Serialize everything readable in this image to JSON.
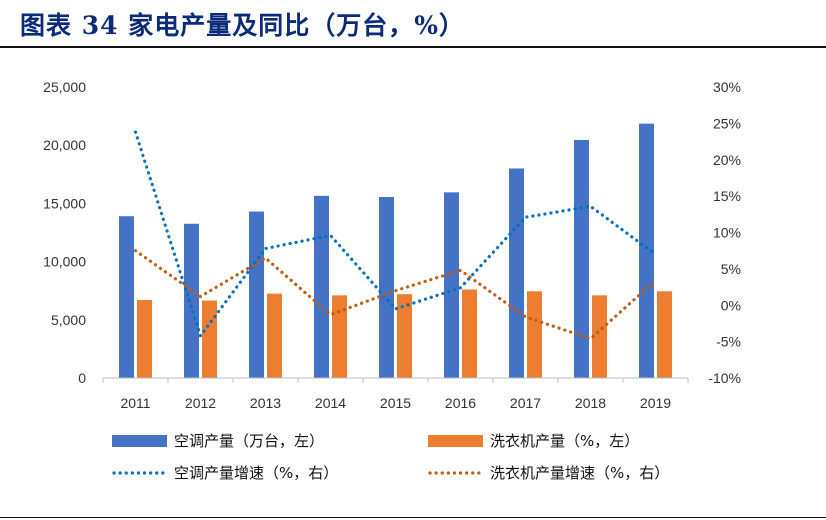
{
  "header": {
    "title": "图表 34 家电产量及同比（万台，%）"
  },
  "chart_data": {
    "type": "bar",
    "categories": [
      "2011",
      "2012",
      "2013",
      "2014",
      "2015",
      "2016",
      "2017",
      "2018",
      "2019"
    ],
    "y_left": {
      "ticks": [
        "0",
        "5,000",
        "10,000",
        "15,000",
        "20,000",
        "25,000"
      ],
      "range": [
        0,
        25000
      ]
    },
    "y_right": {
      "ticks": [
        "-10%",
        "-5%",
        "0%",
        "5%",
        "10%",
        "15%",
        "20%",
        "25%",
        "30%"
      ],
      "range": [
        -10,
        30
      ]
    },
    "grid": false,
    "legend_position": "bottom",
    "series": [
      {
        "name": "空调产量（万台，左）",
        "kind": "bar",
        "axis": "left",
        "color": "#4472C4",
        "values": [
          13900,
          13250,
          14300,
          15650,
          15550,
          15950,
          18000,
          20450,
          21850
        ]
      },
      {
        "name": "洗衣机产量（%，左）",
        "kind": "bar",
        "axis": "left",
        "color": "#ED7D31",
        "values": [
          6700,
          6650,
          7250,
          7100,
          7200,
          7600,
          7450,
          7100,
          7450
        ]
      },
      {
        "name": "空调产量增速（%，右）",
        "kind": "line",
        "style": "dotted",
        "axis": "right",
        "color": "#0070C0",
        "values": [
          23.8,
          -4.2,
          7.8,
          9.6,
          -0.5,
          2.4,
          12.1,
          13.6,
          7.0
        ]
      },
      {
        "name": "洗衣机产量增速（%，右）",
        "kind": "line",
        "style": "dotted",
        "axis": "right",
        "color": "#C55A11",
        "values": [
          7.5,
          1.2,
          6.5,
          -1.3,
          2.0,
          4.8,
          -1.6,
          -4.6,
          3.4
        ]
      }
    ]
  }
}
